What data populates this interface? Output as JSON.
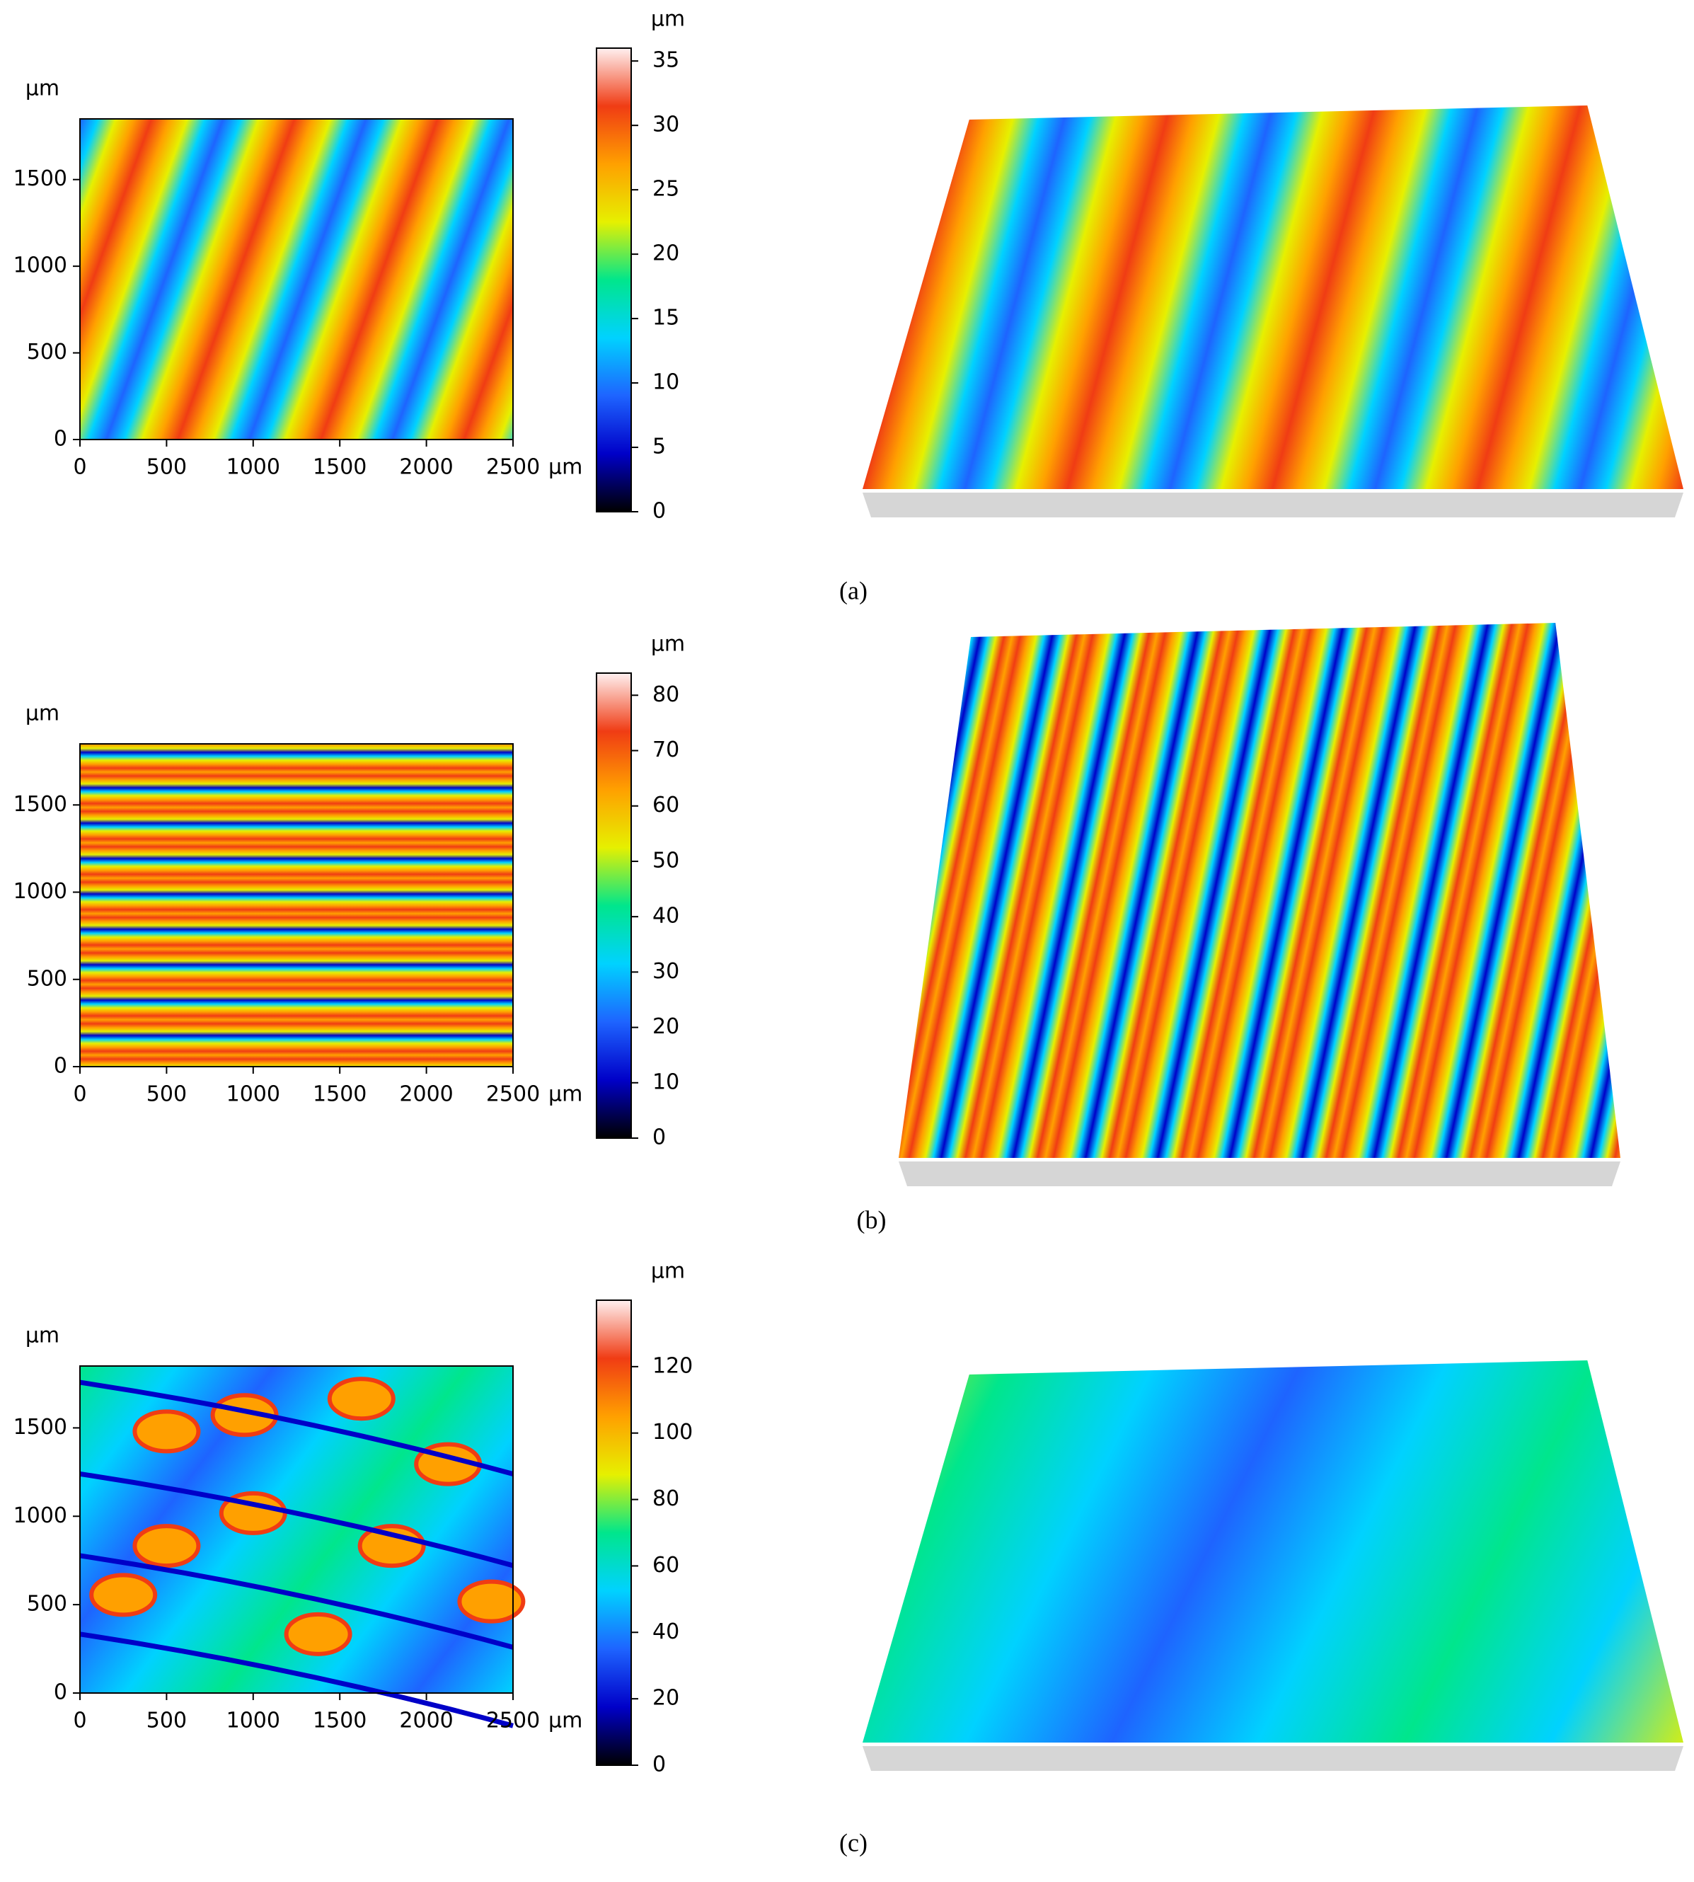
{
  "chart_data": [
    {
      "type": "heatmap",
      "caption": "(a)",
      "x_unit": "µm",
      "y_unit": "µm",
      "colorbar_unit": "µm",
      "xlim": [
        0,
        2500
      ],
      "xticks": [
        0,
        500,
        1000,
        1500,
        2000,
        2500
      ],
      "ylim": [
        0,
        1850
      ],
      "yticks": [
        0,
        500,
        1000,
        1500
      ],
      "clim": [
        0,
        36
      ],
      "cticks": [
        0,
        5,
        10,
        15,
        20,
        25,
        30,
        35
      ],
      "pattern": "diagonal",
      "colormap": [
        "#000000",
        "#0000c8",
        "#1e64ff",
        "#00d2ff",
        "#00e68c",
        "#e6f000",
        "#ffa000",
        "#f03c14",
        "#fff0f0"
      ]
    },
    {
      "type": "heatmap",
      "caption": "(b)",
      "x_unit": "µm",
      "y_unit": "µm",
      "colorbar_unit": "µm",
      "xlim": [
        0,
        2500
      ],
      "xticks": [
        0,
        500,
        1000,
        1500,
        2000,
        2500
      ],
      "ylim": [
        0,
        1850
      ],
      "yticks": [
        0,
        500,
        1000,
        1500
      ],
      "clim": [
        0,
        84
      ],
      "cticks": [
        0,
        10,
        20,
        30,
        40,
        50,
        60,
        70,
        80
      ],
      "pattern": "horizontal",
      "colormap": [
        "#000000",
        "#0000c8",
        "#1e64ff",
        "#00d2ff",
        "#00e68c",
        "#e6f000",
        "#ffa000",
        "#f03c14",
        "#fff0f0"
      ]
    },
    {
      "type": "heatmap",
      "caption": "(c)",
      "x_unit": "µm",
      "y_unit": "µm",
      "colorbar_unit": "µm",
      "xlim": [
        0,
        2500
      ],
      "xticks": [
        0,
        500,
        1000,
        1500,
        2000,
        2500
      ],
      "ylim": [
        0,
        1850
      ],
      "yticks": [
        0,
        500,
        1000,
        1500
      ],
      "clim": [
        0,
        140
      ],
      "cticks": [
        0,
        20,
        40,
        60,
        80,
        100,
        120
      ],
      "pattern": "blobs",
      "colormap": [
        "#000000",
        "#0000c8",
        "#1e64ff",
        "#00d2ff",
        "#00e68c",
        "#e6f000",
        "#ffa000",
        "#f03c14",
        "#fff0f0"
      ]
    }
  ]
}
